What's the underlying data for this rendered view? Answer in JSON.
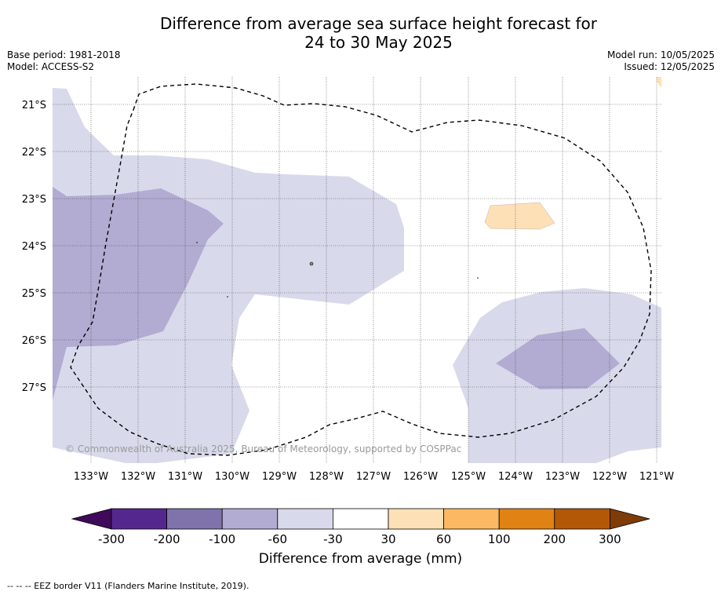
{
  "title_line1": "Difference from average sea surface height forecast for",
  "title_line2": "24 to 30 May 2025",
  "base_period": "Base period: 1981-2018",
  "model": "Model: ACCESS-S2",
  "model_run": "Model run: 10/05/2025",
  "issued": "Issued: 12/05/2025",
  "copyright": "© Commonwealth of Australia 2025, Bureau of Meteorology, supported by COSPPac",
  "lat_labels": [
    "21°S",
    "22°S",
    "23°S",
    "24°S",
    "25°S",
    "26°S",
    "27°S"
  ],
  "lon_labels": [
    "133°W",
    "132°W",
    "131°W",
    "130°W",
    "129°W",
    "128°W",
    "127°W",
    "126°W",
    "125°W",
    "124°W",
    "123°W",
    "122°W",
    "121°W"
  ],
  "colorbar": {
    "title": "Difference from average (mm)",
    "tick_labels": [
      "-300",
      "-200",
      "-100",
      "-60",
      "-30",
      "30",
      "60",
      "100",
      "200",
      "300"
    ],
    "colors": [
      "#3f0a5a",
      "#54278f",
      "#8073ac",
      "#b2abd2",
      "#d8daeb",
      "#ffffff",
      "#fee0b6",
      "#fdb863",
      "#e08214",
      "#b35806",
      "#7f3b08"
    ]
  },
  "legend_note": "--  --  -- EEZ border V11 (Flanders Marine Institute, 2019)."
}
